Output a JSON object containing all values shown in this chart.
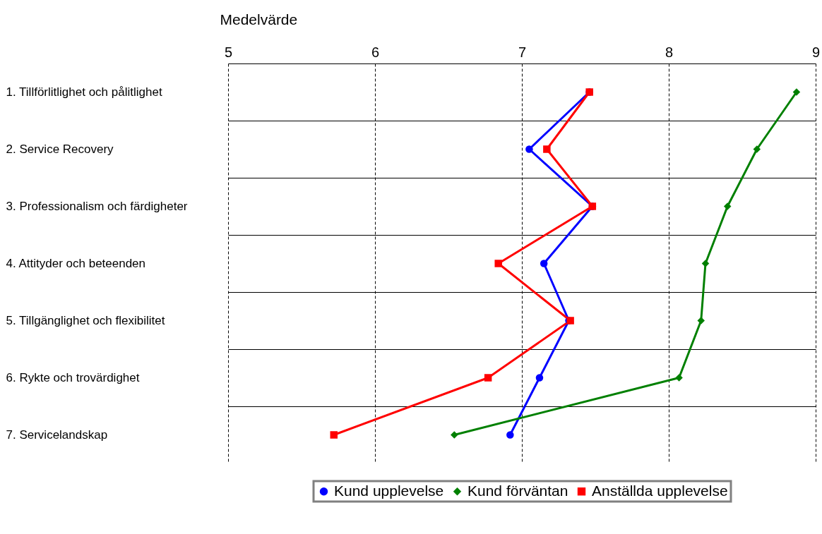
{
  "chart_data": {
    "type": "line",
    "xlabel": "Medelvärde",
    "categories": [
      "1. Tillförlitlighet och pålitlighet",
      "2. Service Recovery",
      "3. Professionalism och färdigheter",
      "4. Attityder och beteenden",
      "5. Tillgänglighet och flexibilitet",
      "6. Rykte och trovärdighet",
      "7. Servicelandskap"
    ],
    "orientation": "horizontal",
    "xlim": [
      5,
      9
    ],
    "xticks": [
      5,
      6,
      7,
      8,
      9
    ],
    "grid": true,
    "legend": "bottom",
    "series": [
      {
        "name": "Kund upplevelse",
        "color": "#0000ff",
        "marker": "circle",
        "values": [
          7.46,
          7.05,
          7.48,
          7.15,
          7.32,
          7.12,
          6.92
        ]
      },
      {
        "name": "Kund förväntan",
        "color": "#008000",
        "marker": "diamond",
        "values": [
          8.87,
          8.6,
          8.4,
          8.25,
          8.22,
          8.07,
          6.54
        ]
      },
      {
        "name": "Anställda upplevelse",
        "color": "#ff0000",
        "marker": "square",
        "values": [
          7.46,
          7.17,
          7.48,
          6.84,
          7.33,
          6.77,
          5.72
        ]
      }
    ]
  }
}
